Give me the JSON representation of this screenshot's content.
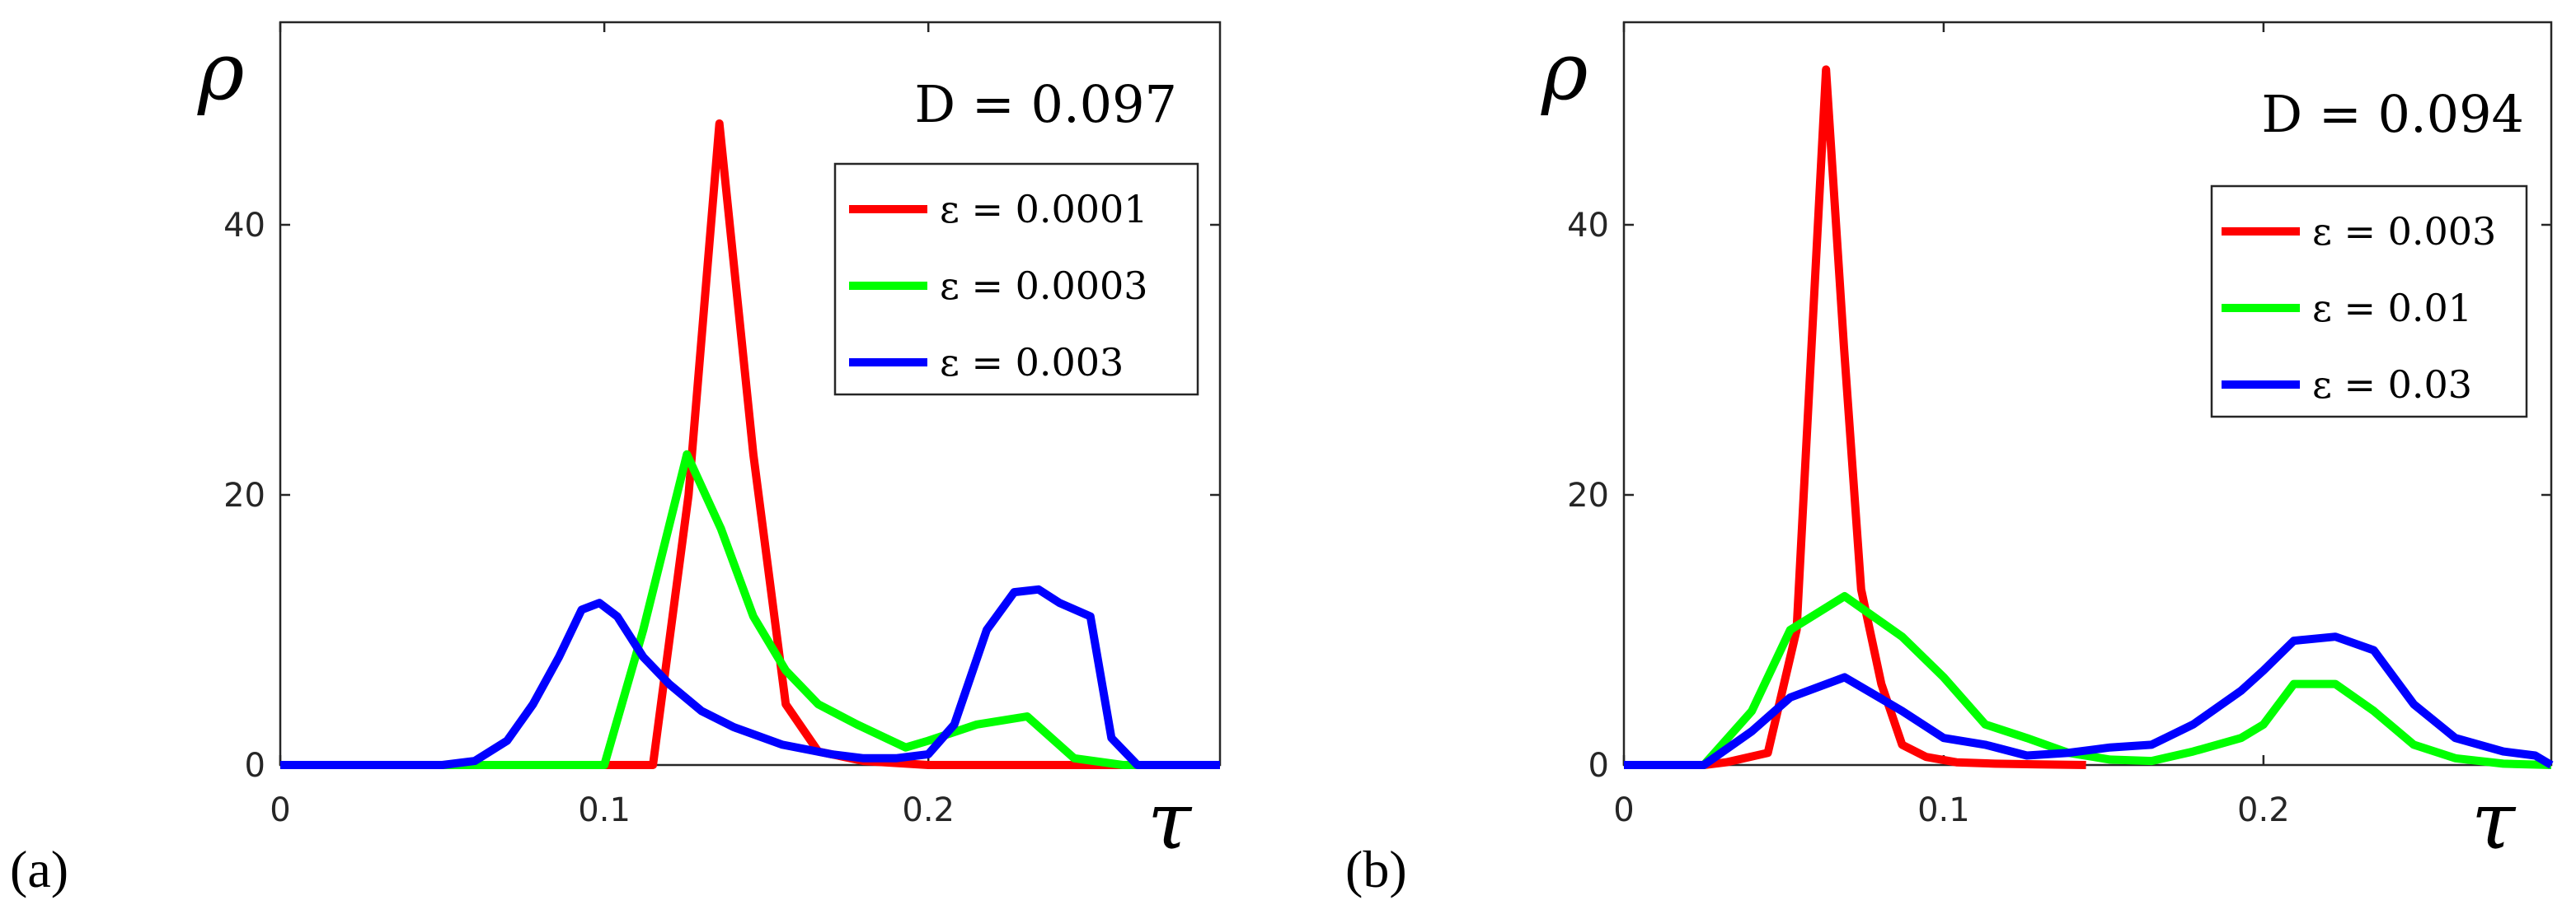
{
  "chart_data": [
    {
      "type": "line",
      "panel_label": "(a)",
      "annotation": "D = 0.097",
      "xlabel": "τ",
      "ylabel": "ρ",
      "xlim": [
        0,
        0.29
      ],
      "ylim": [
        0,
        55
      ],
      "xticks": [
        "0",
        "0.1",
        "0.2"
      ],
      "yticks": [
        "0",
        "20",
        "40"
      ],
      "legend_position": "top-right",
      "series": [
        {
          "name": "ε = 0.0001",
          "color": "#ff0000",
          "x": [
            0,
            0.115,
            0.126,
            0.1355,
            0.146,
            0.156,
            0.166,
            0.18,
            0.2,
            0.29
          ],
          "y": [
            0,
            0,
            20,
            47.5,
            23,
            4.5,
            1,
            0.3,
            0,
            0
          ]
        },
        {
          "name": "ε = 0.0003",
          "color": "#00ff00",
          "x": [
            0,
            0.1,
            0.112,
            0.1255,
            0.136,
            0.146,
            0.156,
            0.166,
            0.178,
            0.193,
            0.2,
            0.215,
            0.2305,
            0.245,
            0.26,
            0.29
          ],
          "y": [
            0,
            0,
            10,
            23,
            17.5,
            11,
            7,
            4.5,
            3,
            1.3,
            1.8,
            3,
            3.6,
            0.5,
            0,
            0
          ]
        },
        {
          "name": "ε = 0.003",
          "color": "#0000ff",
          "x": [
            0,
            0.05,
            0.06,
            0.07,
            0.078,
            0.086,
            0.093,
            0.0985,
            0.104,
            0.112,
            0.12,
            0.13,
            0.14,
            0.155,
            0.17,
            0.18,
            0.19,
            0.2,
            0.208,
            0.218,
            0.2265,
            0.234,
            0.2405,
            0.25,
            0.2565,
            0.2645,
            0.29
          ],
          "y": [
            0,
            0,
            0.3,
            1.8,
            4.5,
            8,
            11.5,
            12,
            11,
            8,
            6,
            4,
            2.8,
            1.5,
            0.8,
            0.5,
            0.5,
            0.8,
            3,
            10,
            12.8,
            13,
            12,
            11,
            2,
            0,
            0
          ]
        }
      ]
    },
    {
      "type": "line",
      "panel_label": "(b)",
      "annotation": "D = 0.094",
      "xlabel": "τ",
      "ylabel": "ρ",
      "xlim": [
        0,
        0.29
      ],
      "ylim": [
        0,
        55
      ],
      "xticks": [
        "0",
        "0.1",
        "0.2"
      ],
      "yticks": [
        "0",
        "20",
        "40"
      ],
      "legend_position": "top-right",
      "series": [
        {
          "name": "ε = 0.003",
          "color": "#ff0000",
          "x": [
            0,
            0.025,
            0.032,
            0.045,
            0.054,
            0.0632,
            0.0688,
            0.0742,
            0.0805,
            0.087,
            0.0945,
            0.104,
            0.116,
            0.13,
            0.1445
          ],
          "y": [
            0,
            0,
            0.2,
            0.9,
            10,
            51.5,
            31,
            13,
            6,
            1.5,
            0.6,
            0.2,
            0.1,
            0.05,
            0
          ]
        },
        {
          "name": "ε = 0.01",
          "color": "#00ff00",
          "x": [
            0,
            0.025,
            0.04,
            0.052,
            0.069,
            0.087,
            0.1,
            0.113,
            0.126,
            0.139,
            0.152,
            0.165,
            0.178,
            0.193,
            0.2,
            0.2095,
            0.2225,
            0.2345,
            0.247,
            0.26,
            0.275,
            0.29
          ],
          "y": [
            0,
            0,
            4,
            10,
            12.5,
            9.5,
            6.5,
            3,
            2,
            0.9,
            0.4,
            0.3,
            1,
            2,
            3,
            6,
            6,
            4,
            1.5,
            0.5,
            0.1,
            0
          ]
        },
        {
          "name": "ε = 0.03",
          "color": "#0000ff",
          "x": [
            0,
            0.025,
            0.04,
            0.052,
            0.069,
            0.087,
            0.1,
            0.113,
            0.126,
            0.139,
            0.152,
            0.165,
            0.178,
            0.193,
            0.2,
            0.2095,
            0.2225,
            0.2345,
            0.247,
            0.26,
            0.275,
            0.285,
            0.29
          ],
          "y": [
            0,
            0,
            2.5,
            5,
            6.5,
            4,
            2,
            1.5,
            0.7,
            0.9,
            1.3,
            1.5,
            3,
            5.5,
            7,
            9.2,
            9.5,
            8.5,
            4.5,
            2,
            1,
            0.7,
            0
          ]
        }
      ]
    }
  ]
}
